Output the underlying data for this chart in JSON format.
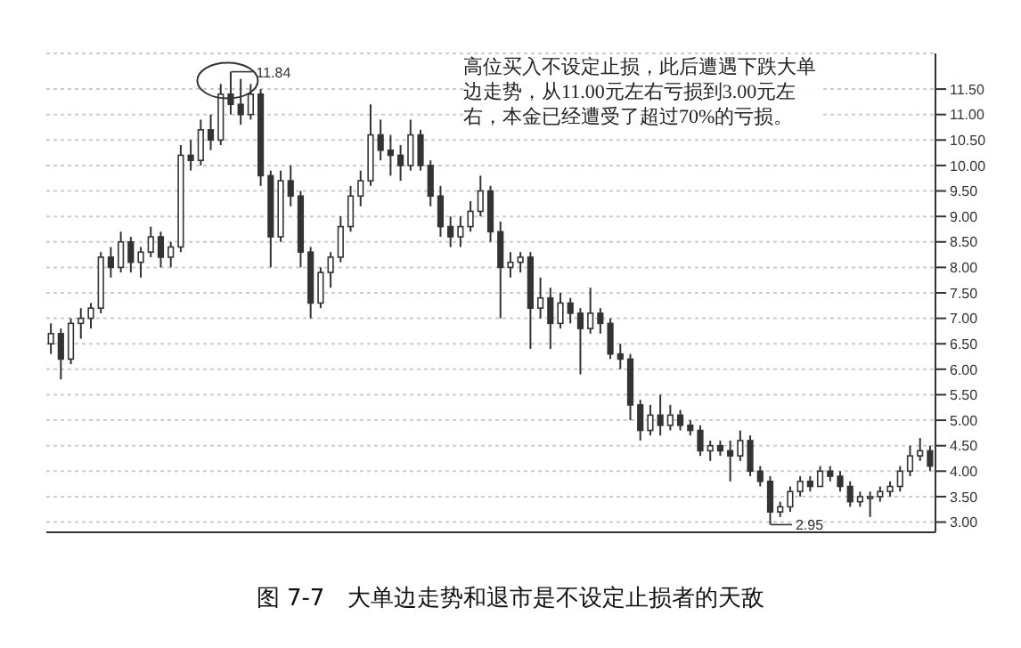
{
  "chart_data": {
    "type": "candlestick",
    "title": "图 7-7　大单边走势和退市是不设定止损者的天敌",
    "annotations": [
      "11.84",
      "2.95",
      "高位买入不设定止损，此后遭遇下跌大单边走势，从11.00元左右亏损到3.00元左右，本金已经遭受了超过70%的亏损。"
    ],
    "color": "#333333",
    "grid": "y",
    "tick_labels": "y",
    "categories": [
      null,
      null,
      null,
      null,
      null,
      null,
      null,
      null,
      null,
      null,
      null,
      null,
      null,
      null,
      null,
      null,
      null,
      null,
      null,
      null,
      null,
      null,
      null,
      null,
      null,
      null,
      null,
      null,
      null,
      null,
      null,
      null,
      null,
      null,
      null,
      null,
      null,
      null,
      null,
      null,
      null,
      null,
      null,
      null,
      null,
      null,
      null,
      null,
      null,
      null,
      null,
      null,
      null,
      null,
      null,
      null,
      null,
      null,
      null,
      null,
      null,
      null,
      null,
      null,
      null,
      null,
      null,
      null,
      null,
      null,
      null,
      null,
      null,
      null,
      null,
      null,
      null,
      null,
      null,
      null,
      null,
      null,
      null,
      null,
      null,
      null,
      null,
      null,
      null
    ],
    "ohlc": [
      [
        6.5,
        6.9,
        6.3,
        6.7
      ],
      [
        6.7,
        6.8,
        5.8,
        6.2
      ],
      [
        6.2,
        7.0,
        6.1,
        6.9
      ],
      [
        6.9,
        7.2,
        6.6,
        7.0
      ],
      [
        7.0,
        7.3,
        6.8,
        7.2
      ],
      [
        7.2,
        8.3,
        7.1,
        8.2
      ],
      [
        8.2,
        8.4,
        7.8,
        8.0
      ],
      [
        8.0,
        8.7,
        7.9,
        8.5
      ],
      [
        8.5,
        8.6,
        7.9,
        8.1
      ],
      [
        8.1,
        8.4,
        7.8,
        8.3
      ],
      [
        8.3,
        8.8,
        8.2,
        8.6
      ],
      [
        8.6,
        8.7,
        8.0,
        8.2
      ],
      [
        8.2,
        8.5,
        8.0,
        8.4
      ],
      [
        8.4,
        10.4,
        8.3,
        10.2
      ],
      [
        10.2,
        10.5,
        9.9,
        10.1
      ],
      [
        10.1,
        10.9,
        10.0,
        10.7
      ],
      [
        10.7,
        11.0,
        10.3,
        10.5
      ],
      [
        10.5,
        11.6,
        10.4,
        11.4
      ],
      [
        11.4,
        11.84,
        11.0,
        11.2
      ],
      [
        11.2,
        11.7,
        10.8,
        11.0
      ],
      [
        11.0,
        11.6,
        10.9,
        11.4
      ],
      [
        11.4,
        11.5,
        9.6,
        9.8
      ],
      [
        9.8,
        9.9,
        8.0,
        8.6
      ],
      [
        8.6,
        9.9,
        8.5,
        9.7
      ],
      [
        9.7,
        10.0,
        9.2,
        9.4
      ],
      [
        9.4,
        9.5,
        8.0,
        8.3
      ],
      [
        8.3,
        8.4,
        7.0,
        7.3
      ],
      [
        7.3,
        8.0,
        7.2,
        7.9
      ],
      [
        7.9,
        8.3,
        7.6,
        8.2
      ],
      [
        8.2,
        9.0,
        8.1,
        8.8
      ],
      [
        8.8,
        9.6,
        8.7,
        9.4
      ],
      [
        9.4,
        9.9,
        9.2,
        9.7
      ],
      [
        9.7,
        11.2,
        9.6,
        10.6
      ],
      [
        10.6,
        10.9,
        10.1,
        10.3
      ],
      [
        10.3,
        10.6,
        9.8,
        10.2
      ],
      [
        10.2,
        10.4,
        9.7,
        10.0
      ],
      [
        10.0,
        10.9,
        9.9,
        10.6
      ],
      [
        10.6,
        10.7,
        9.9,
        10.0
      ],
      [
        10.0,
        10.1,
        9.2,
        9.4
      ],
      [
        9.4,
        9.6,
        8.6,
        8.8
      ],
      [
        8.8,
        9.0,
        8.4,
        8.6
      ],
      [
        8.6,
        9.0,
        8.4,
        8.8
      ],
      [
        8.8,
        9.3,
        8.7,
        9.1
      ],
      [
        9.1,
        9.8,
        9.0,
        9.5
      ],
      [
        9.5,
        9.6,
        8.5,
        8.7
      ],
      [
        8.7,
        8.9,
        7.0,
        8.0
      ],
      [
        8.0,
        8.3,
        7.8,
        8.1
      ],
      [
        8.1,
        8.3,
        7.9,
        8.2
      ],
      [
        8.2,
        8.3,
        6.4,
        7.2
      ],
      [
        7.2,
        7.8,
        7.0,
        7.4
      ],
      [
        7.4,
        7.6,
        6.4,
        6.9
      ],
      [
        6.9,
        7.5,
        6.8,
        7.3
      ],
      [
        7.3,
        7.4,
        6.9,
        7.1
      ],
      [
        7.1,
        7.2,
        5.9,
        6.8
      ],
      [
        6.8,
        7.6,
        6.7,
        7.1
      ],
      [
        7.1,
        7.2,
        6.7,
        6.9
      ],
      [
        6.9,
        7.0,
        6.2,
        6.3
      ],
      [
        6.3,
        6.5,
        6.0,
        6.2
      ],
      [
        6.2,
        6.3,
        5.0,
        5.3
      ],
      [
        5.3,
        5.4,
        4.6,
        4.8
      ],
      [
        4.8,
        5.3,
        4.7,
        5.1
      ],
      [
        5.1,
        5.5,
        4.7,
        4.9
      ],
      [
        4.9,
        5.3,
        4.8,
        5.1
      ],
      [
        5.1,
        5.2,
        4.8,
        4.9
      ],
      [
        4.9,
        5.0,
        4.7,
        4.8
      ],
      [
        4.8,
        4.9,
        4.3,
        4.4
      ],
      [
        4.4,
        4.6,
        4.2,
        4.5
      ],
      [
        4.5,
        4.6,
        4.3,
        4.4
      ],
      [
        4.4,
        4.6,
        3.8,
        4.3
      ],
      [
        4.3,
        4.8,
        4.2,
        4.6
      ],
      [
        4.6,
        4.7,
        3.9,
        4.0
      ],
      [
        4.0,
        4.1,
        3.7,
        3.8
      ],
      [
        3.8,
        3.9,
        2.95,
        3.2
      ],
      [
        3.2,
        3.4,
        3.1,
        3.3
      ],
      [
        3.3,
        3.7,
        3.2,
        3.6
      ],
      [
        3.6,
        3.9,
        3.5,
        3.8
      ],
      [
        3.8,
        3.9,
        3.6,
        3.7
      ],
      [
        3.7,
        4.1,
        3.7,
        4.0
      ],
      [
        4.0,
        4.1,
        3.8,
        3.9
      ],
      [
        3.9,
        4.0,
        3.6,
        3.7
      ],
      [
        3.7,
        3.8,
        3.3,
        3.4
      ],
      [
        3.4,
        3.6,
        3.3,
        3.5
      ],
      [
        3.5,
        3.6,
        3.1,
        3.5
      ],
      [
        3.5,
        3.7,
        3.4,
        3.6
      ],
      [
        3.6,
        3.8,
        3.5,
        3.7
      ],
      [
        3.7,
        4.1,
        3.6,
        4.0
      ],
      [
        4.0,
        4.5,
        3.9,
        4.3
      ],
      [
        4.3,
        4.65,
        4.2,
        4.4
      ],
      [
        4.4,
        4.5,
        4.0,
        4.1
      ]
    ],
    "ylim": [
      2.8,
      12.2
    ],
    "yticks": [
      {
        "value": 3,
        "label": "3.00"
      },
      {
        "value": 3.5,
        "label": "3.50"
      },
      {
        "value": 4,
        "label": "4.00"
      },
      {
        "value": 4.5,
        "label": "4.50"
      },
      {
        "value": 5,
        "label": "5.00"
      },
      {
        "value": 5.5,
        "label": "5.50"
      },
      {
        "value": 6,
        "label": "6.00"
      },
      {
        "value": 6.5,
        "label": "6.50"
      },
      {
        "value": 7,
        "label": "7.00"
      },
      {
        "value": 7.5,
        "label": "7.50"
      },
      {
        "value": 8,
        "label": "8.00"
      },
      {
        "value": 8.5,
        "label": "8.50"
      },
      {
        "value": 9,
        "label": "9.00"
      },
      {
        "value": 9.5,
        "label": "9.50"
      },
      {
        "value": 10,
        "label": "10.00"
      },
      {
        "value": 10.5,
        "label": "10.50"
      },
      {
        "value": 11,
        "label": "11.00"
      },
      {
        "value": 11.5,
        "label": "11.50"
      }
    ]
  }
}
